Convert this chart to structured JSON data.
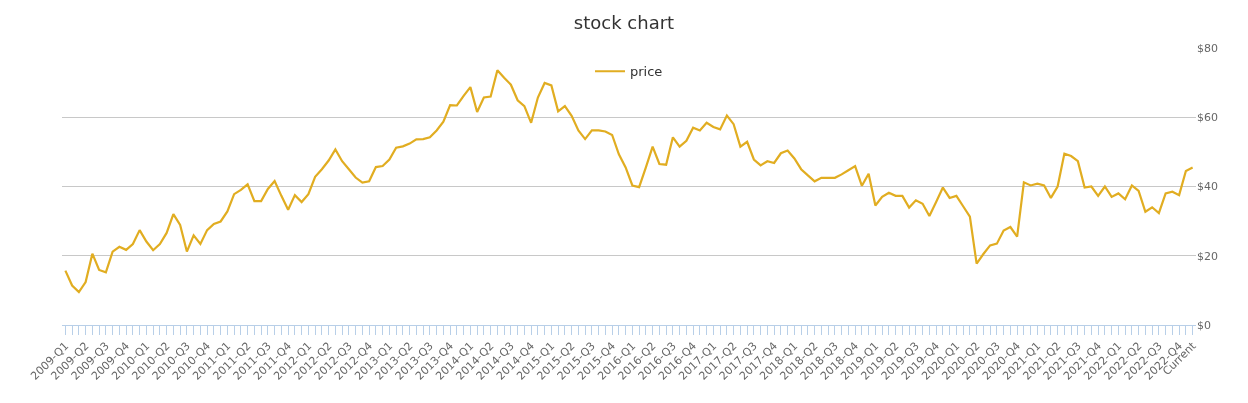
{
  "chart_data": {
    "type": "line",
    "title": "stock chart",
    "categories": [
      "2009-Q1",
      null,
      null,
      "2009-Q2",
      null,
      null,
      "2009-Q3",
      null,
      null,
      "2009-Q4",
      null,
      null,
      "2010-Q1",
      null,
      null,
      "2010-Q2",
      null,
      null,
      "2010-Q3",
      null,
      null,
      "2010-Q4",
      null,
      null,
      "2011-Q1",
      null,
      null,
      "2011-Q2",
      null,
      null,
      "2011-Q3",
      null,
      null,
      "2011-Q4",
      null,
      null,
      "2012-Q1",
      null,
      null,
      "2012-Q2",
      null,
      null,
      "2012-Q3",
      null,
      null,
      "2012-Q4",
      null,
      null,
      "2013-Q1",
      null,
      null,
      "2013-Q2",
      null,
      null,
      "2013-Q3",
      null,
      null,
      "2013-Q4",
      null,
      null,
      "2014-Q1",
      null,
      null,
      "2014-Q2",
      null,
      null,
      "2014-Q3",
      null,
      null,
      "2014-Q4",
      null,
      null,
      "2015-Q1",
      null,
      null,
      "2015-Q2",
      null,
      null,
      "2015-Q3",
      null,
      null,
      "2015-Q4",
      null,
      null,
      "2016-Q1",
      null,
      null,
      "2016-Q2",
      null,
      null,
      "2016-Q3",
      null,
      null,
      "2016-Q4",
      null,
      null,
      "2017-Q1",
      null,
      null,
      "2017-Q2",
      null,
      null,
      "2017-Q3",
      null,
      null,
      "2017-Q4",
      null,
      null,
      "2018-Q1",
      null,
      null,
      "2018-Q2",
      null,
      null,
      "2018-Q3",
      null,
      null,
      "2018-Q4",
      null,
      null,
      "2019-Q1",
      null,
      null,
      "2019-Q2",
      null,
      null,
      "2019-Q3",
      null,
      null,
      "2019-Q4",
      null,
      null,
      "2020-Q1",
      null,
      null,
      "2020-Q2",
      null,
      null,
      "2020-Q3",
      null,
      null,
      "2020-Q4",
      null,
      null,
      "2021-Q1",
      null,
      null,
      "2021-Q2",
      null,
      null,
      "2021-Q3",
      null,
      null,
      "2021-Q4",
      null,
      null,
      "2022-Q1",
      null,
      null,
      "2022-Q2",
      null,
      null,
      "2022-Q3",
      null,
      null,
      "2022-Q4",
      null,
      "Current"
    ],
    "series": [
      {
        "name": "price",
        "color": "#e1ad21",
        "values": [
          15.7,
          11.4,
          9.5,
          12.4,
          20.6,
          15.9,
          15.2,
          21.2,
          22.6,
          21.7,
          23.4,
          27.4,
          24.1,
          21.6,
          23.4,
          26.6,
          32.0,
          28.9,
          21.2,
          25.9,
          23.4,
          27.4,
          29.2,
          29.9,
          32.8,
          37.8,
          39.0,
          40.6,
          35.8,
          35.8,
          39.3,
          41.6,
          37.3,
          33.3,
          37.5,
          35.5,
          37.8,
          42.8,
          45.0,
          47.5,
          50.7,
          47.3,
          45.0,
          42.6,
          41.1,
          41.5,
          45.6,
          45.9,
          47.8,
          51.2,
          51.6,
          52.4,
          53.6,
          53.7,
          54.2,
          56.2,
          58.7,
          63.5,
          63.4,
          66.2,
          68.7,
          61.5,
          65.7,
          66.0,
          73.6,
          71.4,
          69.4,
          64.9,
          63.2,
          58.4,
          65.7,
          69.9,
          69.2,
          61.7,
          63.2,
          60.4,
          56.2,
          53.7,
          56.2,
          56.2,
          55.9,
          54.9,
          49.3,
          45.5,
          40.3,
          39.8,
          45.5,
          51.5,
          46.5,
          46.3,
          54.2,
          51.5,
          53.2,
          57.0,
          56.2,
          58.4,
          57.2,
          56.5,
          60.5,
          58.0,
          51.5,
          52.9,
          47.8,
          46.1,
          47.3,
          46.8,
          49.6,
          50.4,
          48.1,
          45.0,
          43.2,
          41.5,
          42.5,
          42.5,
          42.5,
          43.5,
          44.7,
          45.9,
          40.2,
          43.7,
          34.5,
          37.0,
          38.2,
          37.3,
          37.3,
          33.9,
          36.0,
          35.0,
          31.5,
          35.5,
          39.7,
          36.7,
          37.3,
          34.3,
          31.3,
          17.7,
          20.5,
          23.0,
          23.5,
          27.3,
          28.3,
          25.5,
          41.2,
          40.3,
          40.8,
          40.3,
          36.7,
          40.0,
          49.5,
          48.8,
          47.3,
          39.7,
          40.0,
          37.3,
          40.0,
          37.0,
          38.0,
          36.3,
          40.3,
          38.7,
          32.7,
          34.0,
          32.3,
          38.0,
          38.5,
          37.5,
          44.5,
          45.5
        ]
      }
    ],
    "ylim": [
      0,
      80
    ],
    "yticks": [
      {
        "value": 0,
        "label": "$0"
      },
      {
        "value": 20,
        "label": "$20"
      },
      {
        "value": 40,
        "label": "$40"
      },
      {
        "value": 60,
        "label": "$60"
      },
      {
        "value": 80,
        "label": "$80"
      }
    ],
    "grid": "y",
    "legend": "top",
    "marker": "none",
    "line_style": "solid"
  }
}
